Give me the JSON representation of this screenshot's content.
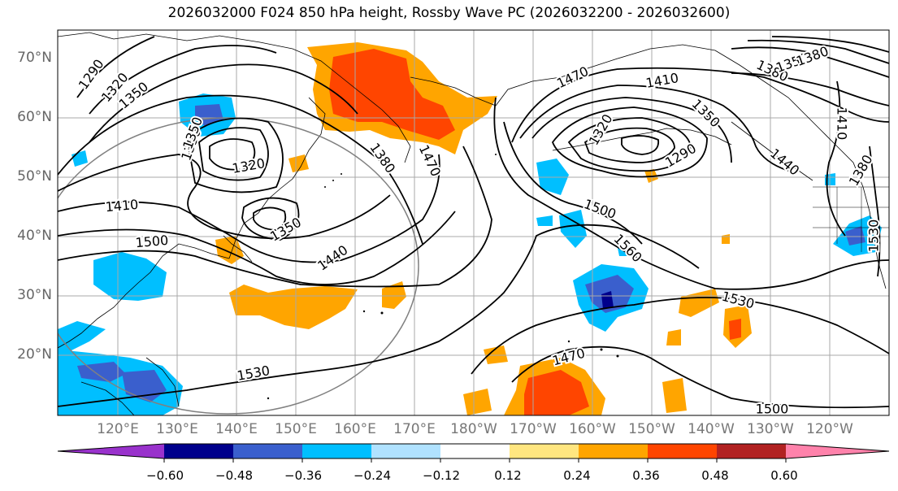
{
  "title": "2026032000 F024 850 hPa height, Rossby Wave PC (2026032200 - 2026032600)",
  "map": {
    "lat_labels": [
      "70°N",
      "60°N",
      "50°N",
      "40°N",
      "30°N",
      "20°N"
    ],
    "lon_labels": [
      "120°E",
      "130°E",
      "140°E",
      "150°E",
      "160°E",
      "170°E",
      "180°W",
      "170°W",
      "160°W",
      "150°W",
      "140°W",
      "130°W",
      "120°W"
    ],
    "contour_labels": [
      "1290",
      "1320",
      "1350",
      "1350",
      "1320",
      "1350",
      "1410",
      "1500",
      "1380",
      "1470",
      "1440",
      "1350",
      "1530",
      "1470",
      "1410",
      "1320",
      "1350",
      "1290",
      "1500",
      "1560",
      "1530",
      "1470",
      "1500",
      "1380",
      "1350",
      "1380",
      "1440",
      "1410",
      "1380",
      "1530"
    ]
  },
  "colorbar": {
    "ticks": [
      "−0.60",
      "−0.48",
      "−0.36",
      "−0.24",
      "−0.12",
      "0.12",
      "0.24",
      "0.36",
      "0.48",
      "0.60"
    ],
    "colors": [
      "#9932cc",
      "#00008b",
      "#3a5fcd",
      "#00bfff",
      "#b0e2ff",
      "#ffffff",
      "#ffe680",
      "#ffa500",
      "#ff4500",
      "#b22222",
      "#ff82ab"
    ]
  }
}
